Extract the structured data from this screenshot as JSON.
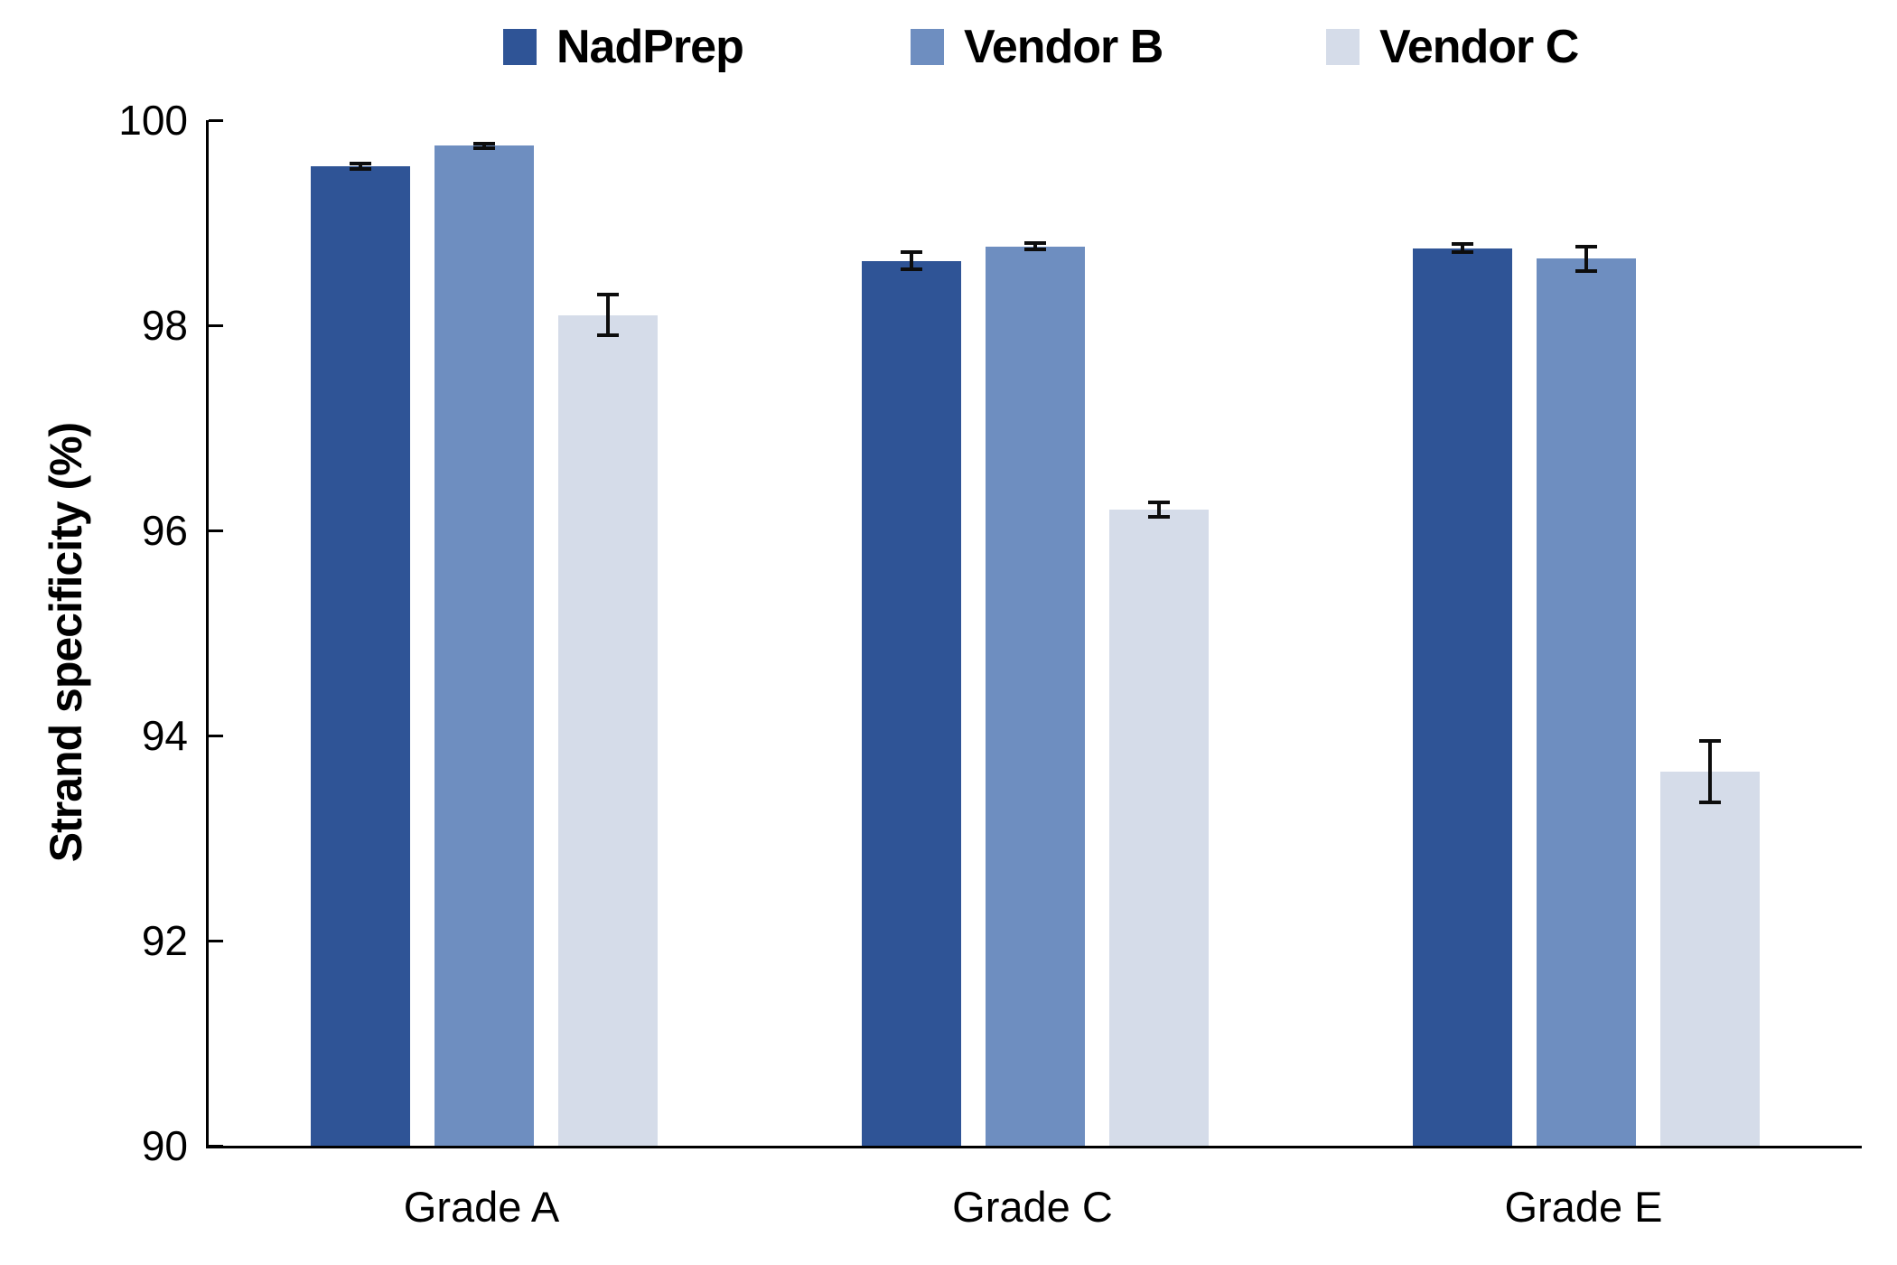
{
  "chart_data": {
    "type": "bar",
    "title": "",
    "categories": [
      "Grade A",
      "Grade C",
      "Grade E"
    ],
    "series": [
      {
        "name": "NadPrep",
        "color": "#2F5496",
        "values": [
          99.55,
          98.63,
          98.75
        ],
        "errors": [
          0.03,
          0.08,
          0.04
        ]
      },
      {
        "name": "Vendor B",
        "color": "#6E8EC0",
        "values": [
          99.75,
          98.77,
          98.65
        ],
        "errors": [
          0.02,
          0.03,
          0.12
        ]
      },
      {
        "name": "Vendor C",
        "color": "#D5DCE9",
        "values": [
          98.1,
          96.2,
          93.65
        ],
        "errors": [
          0.2,
          0.07,
          0.3
        ]
      }
    ],
    "xlabel": "",
    "ylabel": "Strand specificity (%)",
    "ylim": [
      90,
      100
    ],
    "yticks": [
      90,
      92,
      94,
      96,
      98,
      100
    ],
    "grid": false,
    "legend_position": "top",
    "error_bars": true,
    "axis_color": "#000000",
    "error_bar_color": "#0d0d0d",
    "background_color": "#ffffff"
  }
}
